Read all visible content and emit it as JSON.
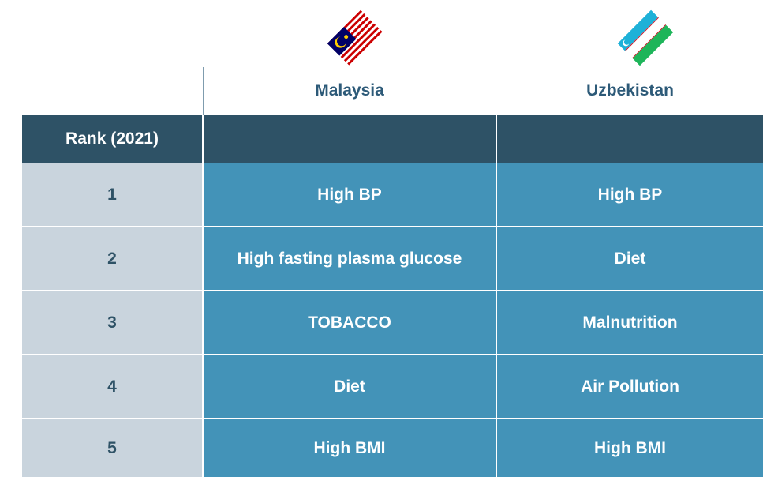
{
  "table": {
    "columns": [
      "Malaysia",
      "Uzbekistan"
    ],
    "header_label": "Rank (2021)",
    "rows": [
      [
        "1",
        "High BP",
        "High BP"
      ],
      [
        "2",
        "High fasting plasma glucose",
        "Diet"
      ],
      [
        "3",
        "TOBACCO",
        "Malnutrition"
      ],
      [
        "4",
        "Diet",
        "Air Pollution"
      ],
      [
        "5",
        "High BMI",
        "High BMI"
      ]
    ]
  }
}
